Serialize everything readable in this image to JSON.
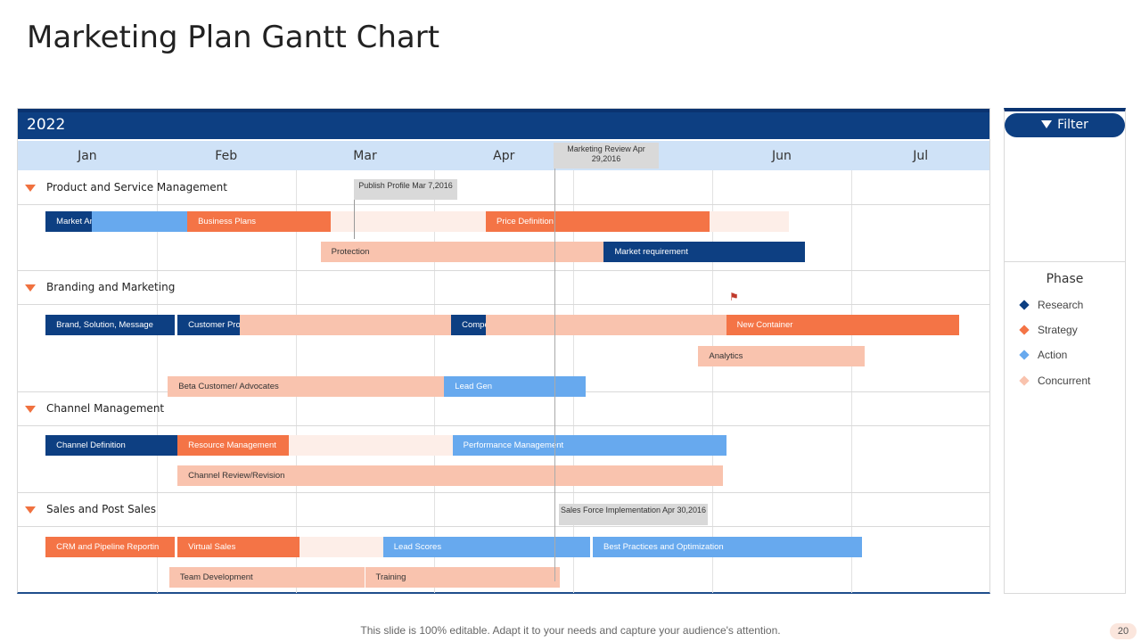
{
  "page": {
    "title": "Marketing Plan Gantt Chart",
    "footer": "This slide is 100% editable. Adapt it to your needs and capture your audience's attention.",
    "page_number": "20"
  },
  "filter": {
    "label": "Filter",
    "icon": "funnel-icon"
  },
  "legend": {
    "title": "Phase",
    "items": [
      {
        "label": "Research",
        "color": "#0d3f82"
      },
      {
        "label": "Strategy",
        "color": "#f47446"
      },
      {
        "label": "Action",
        "color": "#67a9ee"
      },
      {
        "label": "Concurrent",
        "color": "#f9c3ae"
      }
    ]
  },
  "chart_data": {
    "type": "gantt",
    "year": "2022",
    "months": [
      "Jan",
      "Feb",
      "Mar",
      "Apr",
      "May",
      "Jun",
      "Jul"
    ],
    "sections": [
      {
        "name": "Product and Service Management"
      },
      {
        "name": "Branding and Marketing"
      },
      {
        "name": "Channel Management"
      },
      {
        "name": "Sales and Post Sales"
      }
    ],
    "tasks": [
      {
        "label": "Market Analysis",
        "phase": "Research",
        "section": 0,
        "row": 0,
        "start": 0.2,
        "end": 0.53
      },
      {
        "label": "",
        "phase": "Action",
        "section": 0,
        "row": 0,
        "start": 0.53,
        "end": 1.22
      },
      {
        "label": "Business Plans",
        "phase": "Strategy",
        "section": 0,
        "row": 0,
        "start": 1.22,
        "end": 2.25
      },
      {
        "label": "",
        "phase": "Ghost",
        "section": 0,
        "row": 0,
        "start": 2.25,
        "end": 3.37
      },
      {
        "label": "Price Definition",
        "phase": "Strategy",
        "section": 0,
        "row": 0,
        "start": 3.37,
        "end": 4.98
      },
      {
        "label": "",
        "phase": "Ghost",
        "section": 0,
        "row": 0,
        "start": 4.98,
        "end": 5.55
      },
      {
        "label": "Protection",
        "phase": "Concurrent",
        "section": 0,
        "row": 1,
        "start": 2.18,
        "end": 4.22
      },
      {
        "label": "Market requirement",
        "phase": "Research",
        "section": 0,
        "row": 1,
        "start": 4.22,
        "end": 5.67
      },
      {
        "label": "Brand, Solution, Message",
        "phase": "Research",
        "section": 1,
        "row": 0,
        "start": 0.2,
        "end": 1.13
      },
      {
        "label": "Customer Profile",
        "phase": "Research",
        "section": 1,
        "row": 0,
        "start": 1.15,
        "end": 1.6
      },
      {
        "label": "",
        "phase": "Concurrent",
        "section": 1,
        "row": 0,
        "start": 1.6,
        "end": 3.12
      },
      {
        "label": "Competitor Profile",
        "phase": "Research",
        "section": 1,
        "row": 0,
        "start": 3.12,
        "end": 3.37
      },
      {
        "label": "",
        "phase": "Concurrent",
        "section": 1,
        "row": 0,
        "start": 3.37,
        "end": 5.1
      },
      {
        "label": "New Container",
        "phase": "Strategy",
        "section": 1,
        "row": 0,
        "start": 5.1,
        "end": 6.78
      },
      {
        "label": "Analytics",
        "phase": "Concurrent",
        "section": 1,
        "row": 1,
        "start": 4.9,
        "end": 6.1
      },
      {
        "label": "Beta Customer/ Advocates",
        "phase": "Concurrent",
        "section": 1,
        "row": 2,
        "start": 1.08,
        "end": 3.07
      },
      {
        "label": "Lead Gen",
        "phase": "Action",
        "section": 1,
        "row": 2,
        "start": 3.07,
        "end": 4.09
      },
      {
        "label": "Channel Definition",
        "phase": "Research",
        "section": 2,
        "row": 0,
        "start": 0.2,
        "end": 1.15
      },
      {
        "label": "Resource Management",
        "phase": "Strategy",
        "section": 2,
        "row": 0,
        "start": 1.15,
        "end": 1.95
      },
      {
        "label": "",
        "phase": "Ghost",
        "section": 2,
        "row": 0,
        "start": 1.95,
        "end": 3.13
      },
      {
        "label": "Performance Management",
        "phase": "Action",
        "section": 2,
        "row": 0,
        "start": 3.13,
        "end": 5.1
      },
      {
        "label": "Channel Review/Revision",
        "phase": "Concurrent",
        "section": 2,
        "row": 1,
        "start": 1.15,
        "end": 5.08
      },
      {
        "label": "CRM and Pipeline Reportin",
        "phase": "Strategy",
        "section": 3,
        "row": 0,
        "start": 0.2,
        "end": 1.13
      },
      {
        "label": "Virtual Sales",
        "phase": "Strategy",
        "section": 3,
        "row": 0,
        "start": 1.15,
        "end": 2.03
      },
      {
        "label": "",
        "phase": "Ghost",
        "section": 3,
        "row": 0,
        "start": 2.03,
        "end": 2.63
      },
      {
        "label": "Lead Scores",
        "phase": "Action",
        "section": 3,
        "row": 0,
        "start": 2.63,
        "end": 4.12
      },
      {
        "label": "Best Practices and Optimization",
        "phase": "Action",
        "section": 3,
        "row": 0,
        "start": 4.14,
        "end": 6.08
      },
      {
        "label": "Team Development",
        "phase": "Concurrent",
        "section": 3,
        "row": 1,
        "start": 1.09,
        "end": 2.5
      },
      {
        "label": "Training",
        "phase": "Concurrent",
        "section": 3,
        "row": 1,
        "start": 2.5,
        "end": 3.9
      }
    ],
    "milestones": [
      {
        "label": "Publish Profile Mar 7,2016"
      },
      {
        "label": "Marketing Review Apr 29,2016"
      },
      {
        "label": "Sales Force Implementation Apr 30,2016"
      }
    ]
  }
}
